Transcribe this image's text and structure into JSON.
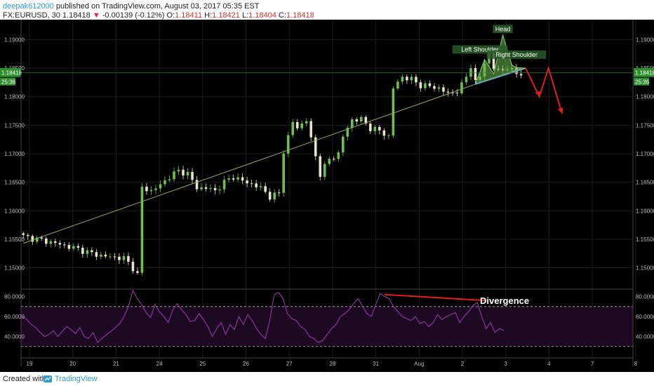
{
  "header": {
    "author": "deepak612000",
    "published": "published on TradingView.com, August 03, 2017 05:35 EST",
    "symbol": "FX:EURUSD, 30",
    "last": "1.18418",
    "change": "-0.00139 (-0.12%)",
    "open_label": "O:",
    "open": "1.18411",
    "high_label": "H:",
    "high": "1.18421",
    "low_label": "L:",
    "low": "1.18404",
    "close_label": "C:",
    "close": "1.18418"
  },
  "footer": {
    "created_with": "Created with",
    "brand": "TradingView"
  },
  "colors": {
    "background": "#000000",
    "bull": "#6fbf4f",
    "bear": "#e8e4c8",
    "trendline": "#8fae6b",
    "neckline": "#2a4fff",
    "arrow": "#e01e1e",
    "rsi_line": "#9b3fae",
    "rsi_fill": "#1d0a22",
    "price_badge": "#2f8f2f"
  },
  "chart_data": {
    "type": "candlestick",
    "x_tick_labels": [
      "19",
      "20",
      "21",
      "24",
      "25",
      "26",
      "27",
      "28",
      "31",
      "Aug",
      "2",
      "3",
      "4",
      "7",
      "8"
    ],
    "y_ticks": [
      1.15,
      1.155,
      1.16,
      1.165,
      1.17,
      1.175,
      1.18,
      1.185,
      1.19
    ],
    "y_tick_labels": [
      "1.15000",
      "1.15500",
      "1.16000",
      "1.16500",
      "1.17000",
      "1.17500",
      "1.18000",
      "1.18500",
      "1.19000"
    ],
    "ylim": [
      1.1465,
      1.1935
    ],
    "current_price": 1.18418,
    "current_price_label": "1.18418",
    "countdown_label": "25:36",
    "price_path": [
      [
        0,
        1.1555
      ],
      [
        6,
        1.1545
      ],
      [
        12,
        1.1533
      ],
      [
        15,
        1.1525
      ],
      [
        18,
        1.152
      ],
      [
        22,
        1.1517
      ],
      [
        24,
        1.15
      ],
      [
        25,
        1.1488
      ],
      [
        26,
        1.164
      ],
      [
        28,
        1.1635
      ],
      [
        30,
        1.1645
      ],
      [
        32,
        1.166
      ],
      [
        34,
        1.167
      ],
      [
        36,
        1.1665
      ],
      [
        38,
        1.164
      ],
      [
        40,
        1.164
      ],
      [
        42,
        1.1635
      ],
      [
        44,
        1.165
      ],
      [
        46,
        1.166
      ],
      [
        48,
        1.1652
      ],
      [
        50,
        1.1647
      ],
      [
        52,
        1.164
      ],
      [
        54,
        1.1625
      ],
      [
        56,
        1.163
      ],
      [
        57,
        1.1705
      ],
      [
        59,
        1.1755
      ],
      [
        60,
        1.1745
      ],
      [
        62,
        1.176
      ],
      [
        63,
        1.1725
      ],
      [
        64,
        1.1695
      ],
      [
        65,
        1.1665
      ],
      [
        67,
        1.169
      ],
      [
        69,
        1.17
      ],
      [
        70,
        1.173
      ],
      [
        72,
        1.176
      ],
      [
        74,
        1.176
      ],
      [
        76,
        1.1745
      ],
      [
        78,
        1.174
      ],
      [
        80,
        1.173
      ],
      [
        81,
        1.1815
      ],
      [
        83,
        1.1835
      ],
      [
        85,
        1.183
      ],
      [
        87,
        1.182
      ],
      [
        89,
        1.1818
      ],
      [
        91,
        1.1815
      ],
      [
        93,
        1.1805
      ],
      [
        95,
        1.181
      ],
      [
        96,
        1.182
      ],
      [
        97,
        1.1835
      ],
      [
        98,
        1.1855
      ],
      [
        99,
        1.1825
      ],
      [
        100,
        1.1835
      ],
      [
        101,
        1.186
      ],
      [
        102,
        1.1878
      ],
      [
        103,
        1.185
      ],
      [
        104,
        1.1845
      ],
      [
        105,
        1.1847
      ],
      [
        106,
        1.1852
      ],
      [
        107,
        1.1845
      ],
      [
        108,
        1.184
      ],
      [
        109,
        1.18418
      ]
    ],
    "overlays": [
      {
        "type": "line",
        "name": "trendline",
        "from": [
          0,
          1.1543
        ],
        "to": [
          109,
          1.185
        ]
      },
      {
        "type": "line",
        "name": "neckline",
        "from": [
          99,
          1.1822
        ],
        "to": [
          110,
          1.185
        ]
      },
      {
        "type": "polygon",
        "name": "head-and-shoulders",
        "points": [
          [
            99,
            1.1822
          ],
          [
            101,
            1.1865
          ],
          [
            103,
            1.184
          ],
          [
            105,
            1.1908
          ],
          [
            107,
            1.1855
          ],
          [
            108,
            1.1851
          ],
          [
            110,
            1.185
          ]
        ]
      },
      {
        "type": "arrow",
        "name": "projection",
        "points": [
          [
            110,
            1.185
          ],
          [
            113,
            1.18
          ],
          [
            115,
            1.185
          ],
          [
            118,
            1.177
          ]
        ]
      }
    ],
    "annotations": [
      {
        "text": "Head",
        "at": [
          105,
          1.1915
        ]
      },
      {
        "text": "Left Shoulder",
        "at": [
          100,
          1.1879
        ]
      },
      {
        "text": "Right Shoulder",
        "at": [
          108,
          1.187
        ]
      }
    ],
    "rsi": {
      "yticks": [
        40,
        60,
        80
      ],
      "ytick_labels": [
        "40.0000",
        "60.0000",
        "80.0000"
      ],
      "ylim": [
        20,
        86
      ],
      "band": [
        30,
        70
      ],
      "values": [
        60,
        57,
        52,
        49,
        44,
        40,
        42,
        46,
        40,
        45,
        50,
        47,
        43,
        49,
        40,
        38,
        44,
        34,
        38,
        42,
        45,
        49,
        53,
        60,
        70,
        86,
        78,
        72,
        64,
        59,
        72,
        65,
        60,
        54,
        66,
        73,
        67,
        62,
        55,
        56,
        63,
        57,
        50,
        40,
        48,
        54,
        42,
        52,
        47,
        60,
        52,
        62,
        56,
        48,
        42,
        38,
        56,
        82,
        84,
        78,
        63,
        58,
        56,
        50,
        47,
        40,
        38,
        34,
        36,
        42,
        48,
        52,
        60,
        63,
        67,
        73,
        78,
        70,
        63,
        60,
        72,
        83,
        80,
        78,
        70,
        65,
        60,
        58,
        56,
        60,
        53,
        55,
        50,
        54,
        62,
        57,
        60,
        62,
        64,
        54,
        60,
        65,
        71,
        74,
        60,
        48,
        54,
        44,
        48,
        46
      ],
      "divergence": {
        "label": "Divergence",
        "from": [
          82,
          82
        ],
        "to": [
          105,
          76
        ]
      }
    }
  }
}
